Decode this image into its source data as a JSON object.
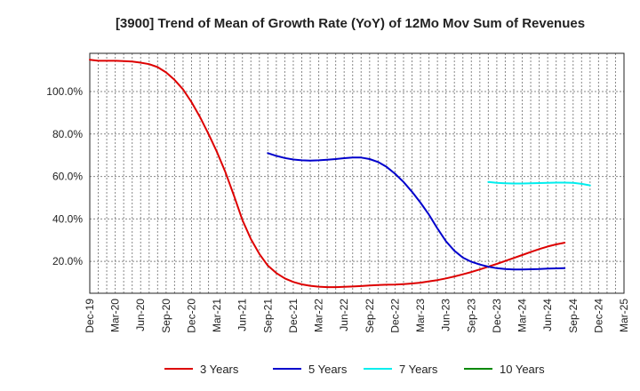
{
  "chart_data": {
    "type": "line",
    "title": "[3900]  Trend of Mean of Growth Rate (YoY) of 12Mo Mov Sum of Revenues",
    "xlabel": "",
    "ylabel": "",
    "grid": true,
    "legend_position": "bottom",
    "x_tick_labels": [
      "Dec-19",
      "Mar-20",
      "Jun-20",
      "Sep-20",
      "Dec-20",
      "Mar-21",
      "Jun-21",
      "Sep-21",
      "Dec-21",
      "Mar-22",
      "Jun-22",
      "Sep-22",
      "Dec-22",
      "Mar-23",
      "Jun-23",
      "Sep-23",
      "Dec-23",
      "Mar-24",
      "Jun-24",
      "Sep-24",
      "Dec-24",
      "Mar-25"
    ],
    "y_ticks": [
      20,
      40,
      60,
      80,
      100
    ],
    "y_tick_labels": [
      "20.0%",
      "40.0%",
      "60.0%",
      "80.0%",
      "100.0%"
    ],
    "ylim": [
      5,
      118
    ],
    "x_index_range": [
      0,
      63
    ],
    "series": [
      {
        "name": "3 Years",
        "color": "#dd0000",
        "start_index": 0,
        "values": [
          115,
          114.5,
          114.5,
          114.5,
          114.3,
          114.1,
          113.6,
          112.9,
          111.5,
          109,
          105.5,
          101,
          95,
          88,
          80,
          71.5,
          62,
          51,
          39.5,
          30.5,
          23.5,
          18,
          14.5,
          12,
          10.3,
          9.2,
          8.5,
          8.1,
          7.9,
          7.9,
          8,
          8.2,
          8.4,
          8.7,
          8.9,
          9,
          9.1,
          9.3,
          9.6,
          10,
          10.6,
          11.2,
          12,
          12.9,
          13.9,
          15,
          16.2,
          17.5,
          18.8,
          20.2,
          21.6,
          23,
          24.4,
          25.8,
          27,
          28,
          28.8
        ]
      },
      {
        "name": "5 Years",
        "color": "#0000cc",
        "start_index": 21,
        "values": [
          71,
          69.7,
          68.7,
          68,
          67.6,
          67.5,
          67.6,
          67.9,
          68.2,
          68.6,
          68.9,
          68.9,
          68.2,
          66.8,
          64.5,
          61.3,
          57.4,
          52.8,
          47.7,
          42,
          35.5,
          29.5,
          25,
          21.8,
          19.8,
          18.5,
          17.5,
          16.8,
          16.4,
          16.2,
          16.2,
          16.3,
          16.4,
          16.6,
          16.7,
          16.8
        ]
      },
      {
        "name": "7 Years",
        "color": "#00eeee",
        "start_index": 47,
        "values": [
          57.4,
          57,
          56.8,
          56.7,
          56.7,
          56.8,
          56.9,
          57,
          57.1,
          57.1,
          57,
          56.5,
          55.8
        ]
      },
      {
        "name": "10 Years",
        "color": "#008800",
        "start_index": 0,
        "values": []
      }
    ]
  }
}
